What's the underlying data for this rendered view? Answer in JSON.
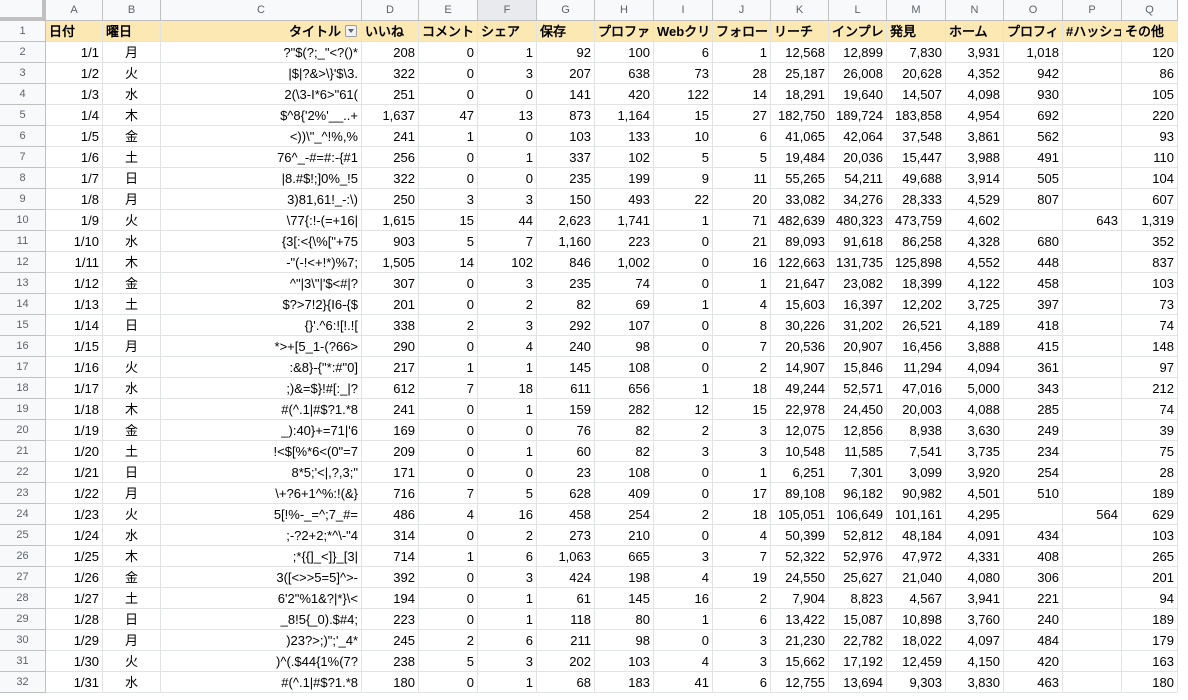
{
  "sheet": {
    "column_letters": [
      "A",
      "B",
      "C",
      "D",
      "E",
      "F",
      "G",
      "H",
      "I",
      "J",
      "K",
      "L",
      "M",
      "N",
      "O",
      "P",
      "Q"
    ],
    "headers": [
      "日付",
      "曜日",
      "タイトル",
      "いいね",
      "コメント",
      "シェア",
      "保存",
      "プロファ",
      "Webクリ",
      "フォロー",
      "リーチ",
      "インプレ",
      "発見",
      "ホーム",
      "プロフィ",
      "#ハッシュ",
      "その他"
    ],
    "rows": [
      {
        "n": "2",
        "c": [
          "1/1",
          "月",
          "?\"$(?;_\"<?()*",
          "208",
          "0",
          "1",
          "92",
          "100",
          "6",
          "1",
          "12,568",
          "12,899",
          "7,830",
          "3,931",
          "1,018",
          "",
          "120"
        ]
      },
      {
        "n": "3",
        "c": [
          "1/2",
          "火",
          "|$|?&>\\}'$\\3.",
          "322",
          "0",
          "3",
          "207",
          "638",
          "73",
          "28",
          "25,187",
          "26,008",
          "20,628",
          "4,352",
          "942",
          "",
          "86"
        ]
      },
      {
        "n": "4",
        "c": [
          "1/3",
          "水",
          "2(\\3-I*6>\"61(",
          "251",
          "0",
          "0",
          "141",
          "420",
          "122",
          "14",
          "18,291",
          "19,640",
          "14,507",
          "4,098",
          "930",
          "",
          "105"
        ]
      },
      {
        "n": "5",
        "c": [
          "1/4",
          "木",
          "$^8{'2%'__..+",
          "1,637",
          "47",
          "13",
          "873",
          "1,164",
          "15",
          "27",
          "182,750",
          "189,724",
          "183,858",
          "4,954",
          "692",
          "",
          "220"
        ]
      },
      {
        "n": "6",
        "c": [
          "1/5",
          "金",
          "<))\\\"_^!%,%",
          "241",
          "1",
          "0",
          "103",
          "133",
          "10",
          "6",
          "41,065",
          "42,064",
          "37,548",
          "3,861",
          "562",
          "",
          "93"
        ]
      },
      {
        "n": "7",
        "c": [
          "1/6",
          "土",
          "76^_-#=#:-{#1",
          "256",
          "0",
          "1",
          "337",
          "102",
          "5",
          "5",
          "19,484",
          "20,036",
          "15,447",
          "3,988",
          "491",
          "",
          "110"
        ]
      },
      {
        "n": "8",
        "c": [
          "1/7",
          "日",
          "|8.#$!;]0%_!5",
          "322",
          "0",
          "0",
          "235",
          "199",
          "9",
          "11",
          "55,265",
          "54,211",
          "49,688",
          "3,914",
          "505",
          "",
          "104"
        ]
      },
      {
        "n": "9",
        "c": [
          "1/8",
          "月",
          "3)81,61!_-:\\)",
          "250",
          "3",
          "3",
          "150",
          "493",
          "22",
          "20",
          "33,082",
          "34,276",
          "28,333",
          "4,529",
          "807",
          "",
          "607"
        ]
      },
      {
        "n": "10",
        "c": [
          "1/9",
          "火",
          "\\77{:!-(=+16|",
          "1,615",
          "15",
          "44",
          "2,623",
          "1,741",
          "1",
          "71",
          "482,639",
          "480,323",
          "473,759",
          "4,602",
          "",
          "643",
          "1,319"
        ]
      },
      {
        "n": "11",
        "c": [
          "1/10",
          "水",
          "{3[:<{\\%[\"+75",
          "903",
          "5",
          "7",
          "1,160",
          "223",
          "0",
          "21",
          "89,093",
          "91,618",
          "86,258",
          "4,328",
          "680",
          "",
          "352"
        ]
      },
      {
        "n": "12",
        "c": [
          "1/11",
          "木",
          "-\"(-!<+!*)%7;",
          "1,505",
          "14",
          "102",
          "846",
          "1,002",
          "0",
          "16",
          "122,663",
          "131,735",
          "125,898",
          "4,552",
          "448",
          "",
          "837"
        ]
      },
      {
        "n": "13",
        "c": [
          "1/12",
          "金",
          "^\"|3\\\"|'$<#|?",
          "307",
          "0",
          "3",
          "235",
          "74",
          "0",
          "1",
          "21,647",
          "23,082",
          "18,399",
          "4,122",
          "458",
          "",
          "103"
        ]
      },
      {
        "n": "14",
        "c": [
          "1/13",
          "土",
          "$?>7!2}{I6-{$",
          "201",
          "0",
          "2",
          "82",
          "69",
          "1",
          "4",
          "15,603",
          "16,397",
          "12,202",
          "3,725",
          "397",
          "",
          "73"
        ]
      },
      {
        "n": "15",
        "c": [
          "1/14",
          "日",
          "{}'.^6:![!.![",
          "338",
          "2",
          "3",
          "292",
          "107",
          "0",
          "8",
          "30,226",
          "31,202",
          "26,521",
          "4,189",
          "418",
          "",
          "74"
        ]
      },
      {
        "n": "16",
        "c": [
          "1/15",
          "月",
          "*>+[5_1-(?66>",
          "290",
          "0",
          "4",
          "240",
          "98",
          "0",
          "7",
          "20,536",
          "20,907",
          "16,456",
          "3,888",
          "415",
          "",
          "148"
        ]
      },
      {
        "n": "17",
        "c": [
          "1/16",
          "火",
          ":&8}-{\"*:#\"0]",
          "217",
          "1",
          "1",
          "145",
          "108",
          "0",
          "2",
          "14,907",
          "15,846",
          "11,294",
          "4,094",
          "361",
          "",
          "97"
        ]
      },
      {
        "n": "18",
        "c": [
          "1/17",
          "水",
          ";)&=$}!#[:_|?",
          "612",
          "7",
          "18",
          "611",
          "656",
          "1",
          "18",
          "49,244",
          "52,571",
          "47,016",
          "5,000",
          "343",
          "",
          "212"
        ]
      },
      {
        "n": "19",
        "c": [
          "1/18",
          "木",
          "#(^.1|#$?1.*8",
          "241",
          "0",
          "1",
          "159",
          "282",
          "12",
          "15",
          "22,978",
          "24,450",
          "20,003",
          "4,088",
          "285",
          "",
          "74"
        ]
      },
      {
        "n": "20",
        "c": [
          "1/19",
          "金",
          "_):40}+=71|'6",
          "169",
          "0",
          "0",
          "76",
          "82",
          "2",
          "3",
          "12,075",
          "12,856",
          "8,938",
          "3,630",
          "249",
          "",
          "39"
        ]
      },
      {
        "n": "21",
        "c": [
          "1/20",
          "土",
          "!<$[%*6<(0\"=7",
          "209",
          "0",
          "1",
          "60",
          "82",
          "3",
          "3",
          "10,548",
          "11,585",
          "7,541",
          "3,735",
          "234",
          "",
          "75"
        ]
      },
      {
        "n": "22",
        "c": [
          "1/21",
          "日",
          "8*5;'<|,?,3;\"",
          "171",
          "0",
          "0",
          "23",
          "108",
          "0",
          "1",
          "6,251",
          "7,301",
          "3,099",
          "3,920",
          "254",
          "",
          "28"
        ]
      },
      {
        "n": "23",
        "c": [
          "1/22",
          "月",
          "\\+?6+1^%:!(&}",
          "716",
          "7",
          "5",
          "628",
          "409",
          "0",
          "17",
          "89,108",
          "96,182",
          "90,982",
          "4,501",
          "510",
          "",
          "189"
        ]
      },
      {
        "n": "24",
        "c": [
          "1/23",
          "火",
          "5[!%-_=^;7_#=",
          "486",
          "4",
          "16",
          "458",
          "254",
          "2",
          "18",
          "105,051",
          "106,649",
          "101,161",
          "4,295",
          "",
          "564",
          "629"
        ]
      },
      {
        "n": "25",
        "c": [
          "1/24",
          "水",
          ";-?2+2;*^\\-\"4",
          "314",
          "0",
          "2",
          "273",
          "210",
          "0",
          "4",
          "50,399",
          "52,812",
          "48,184",
          "4,091",
          "434",
          "",
          "103"
        ]
      },
      {
        "n": "26",
        "c": [
          "1/25",
          "木",
          ";*{{]_<]}_[3|",
          "714",
          "1",
          "6",
          "1,063",
          "665",
          "3",
          "7",
          "52,322",
          "52,976",
          "47,972",
          "4,331",
          "408",
          "",
          "265"
        ]
      },
      {
        "n": "27",
        "c": [
          "1/26",
          "金",
          "3([<>>5=5]^>-",
          "392",
          "0",
          "3",
          "424",
          "198",
          "4",
          "19",
          "24,550",
          "25,627",
          "21,040",
          "4,080",
          "306",
          "",
          "201"
        ]
      },
      {
        "n": "28",
        "c": [
          "1/27",
          "土",
          "6'2\"%1&?|*}\\<",
          "194",
          "0",
          "1",
          "61",
          "145",
          "16",
          "2",
          "7,904",
          "8,823",
          "4,567",
          "3,941",
          "221",
          "",
          "94"
        ]
      },
      {
        "n": "29",
        "c": [
          "1/28",
          "日",
          "_8!5{_0).$#4;",
          "223",
          "0",
          "1",
          "118",
          "80",
          "1",
          "6",
          "13,422",
          "15,087",
          "10,898",
          "3,760",
          "240",
          "",
          "189"
        ]
      },
      {
        "n": "30",
        "c": [
          "1/29",
          "月",
          ")23?>;)\";'_4*",
          "245",
          "2",
          "6",
          "211",
          "98",
          "0",
          "3",
          "21,230",
          "22,782",
          "18,022",
          "4,097",
          "484",
          "",
          "179"
        ]
      },
      {
        "n": "31",
        "c": [
          "1/30",
          "火",
          ")^(.$44{1%(7?",
          "238",
          "5",
          "3",
          "202",
          "103",
          "4",
          "3",
          "15,662",
          "17,192",
          "12,459",
          "4,150",
          "420",
          "",
          "163"
        ]
      },
      {
        "n": "32",
        "c": [
          "1/31",
          "水",
          "#(^.1|#$?1.*8",
          "180",
          "0",
          "1",
          "68",
          "183",
          "41",
          "6",
          "12,755",
          "13,694",
          "9,303",
          "3,830",
          "463",
          "",
          "180"
        ]
      }
    ]
  }
}
